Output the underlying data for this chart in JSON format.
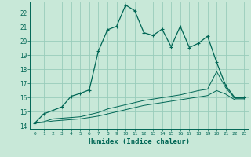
{
  "xlabel": "Humidex (Indice chaleur)",
  "bg_color": "#c8e8d8",
  "grid_color": "#99ccbb",
  "line_color": "#006655",
  "xlim": [
    -0.5,
    23.5
  ],
  "ylim": [
    13.8,
    22.8
  ],
  "xticks": [
    0,
    1,
    2,
    3,
    4,
    5,
    6,
    7,
    8,
    9,
    10,
    11,
    12,
    13,
    14,
    15,
    16,
    17,
    18,
    19,
    20,
    21,
    22,
    23
  ],
  "yticks": [
    14,
    15,
    16,
    17,
    18,
    19,
    20,
    21,
    22
  ],
  "main_x": [
    0,
    1,
    2,
    3,
    4,
    5,
    6,
    7,
    8,
    9,
    10,
    11,
    12,
    13,
    14,
    15,
    16,
    17,
    18,
    19,
    20,
    21,
    22,
    23
  ],
  "main_y": [
    14.2,
    14.85,
    15.1,
    15.35,
    16.1,
    16.3,
    16.55,
    19.3,
    20.8,
    21.05,
    22.55,
    22.15,
    20.6,
    20.4,
    20.85,
    19.6,
    21.05,
    19.55,
    19.85,
    20.35,
    18.5,
    16.85,
    16.0,
    16.0
  ],
  "line2_x": [
    0,
    1,
    2,
    3,
    4,
    5,
    6,
    7,
    8,
    9,
    10,
    11,
    12,
    13,
    14,
    15,
    16,
    17,
    18,
    19,
    20,
    21,
    22,
    23
  ],
  "line2_y": [
    14.2,
    14.3,
    14.5,
    14.55,
    14.6,
    14.65,
    14.8,
    14.95,
    15.2,
    15.35,
    15.5,
    15.65,
    15.8,
    15.9,
    16.0,
    16.1,
    16.2,
    16.35,
    16.5,
    16.6,
    17.85,
    16.7,
    15.95,
    15.95
  ],
  "line3_x": [
    0,
    1,
    2,
    3,
    4,
    5,
    6,
    7,
    8,
    9,
    10,
    11,
    12,
    13,
    14,
    15,
    16,
    17,
    18,
    19,
    20,
    21,
    22,
    23
  ],
  "line3_y": [
    14.2,
    14.25,
    14.35,
    14.4,
    14.45,
    14.5,
    14.6,
    14.7,
    14.85,
    15.0,
    15.15,
    15.3,
    15.45,
    15.55,
    15.65,
    15.75,
    15.85,
    15.95,
    16.05,
    16.15,
    16.5,
    16.25,
    15.85,
    15.85
  ]
}
